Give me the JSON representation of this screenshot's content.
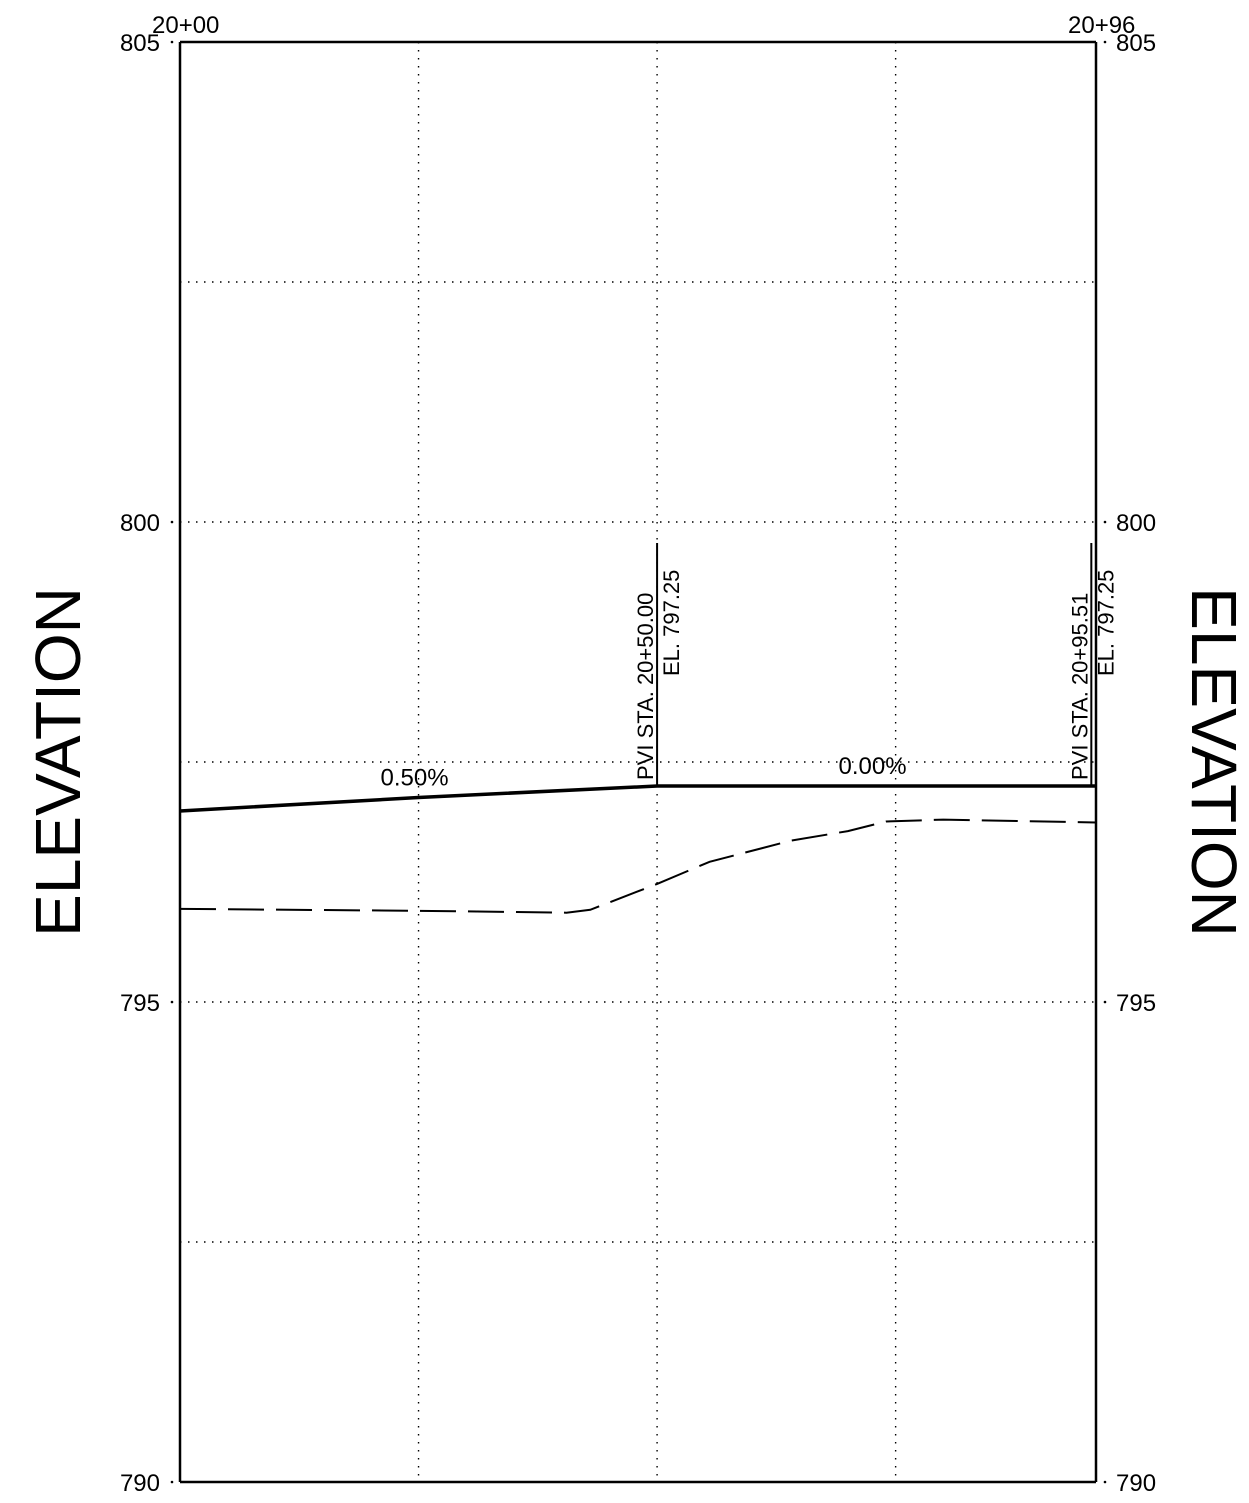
{
  "chart_data": {
    "type": "line",
    "x_axis": {
      "start_label": "20+00",
      "end_label": "20+96",
      "range_ft": [
        0,
        96
      ],
      "grid_every_ft": 25
    },
    "y_axis": {
      "label_left": "ELEVATION",
      "label_right": "ELEVATION",
      "range": [
        790,
        805
      ],
      "major_ticks": [
        790,
        795,
        800,
        805
      ],
      "tick_labels": [
        "790",
        "795",
        "800",
        "805"
      ],
      "minor_grid": [
        792.5,
        797.5,
        802.5
      ]
    },
    "grid": true,
    "series": [
      {
        "style": "solid",
        "points": [
          [
            0,
            796.99
          ],
          [
            25,
            797.13
          ],
          [
            50,
            797.25
          ],
          [
            96,
            797.25
          ]
        ]
      },
      {
        "style": "dashed",
        "points": [
          [
            0,
            795.97
          ],
          [
            25,
            795.95
          ],
          [
            40.5,
            795.93
          ],
          [
            43,
            795.96
          ],
          [
            50,
            796.23
          ],
          [
            55.5,
            796.46
          ],
          [
            64,
            796.68
          ],
          [
            70,
            796.78
          ],
          [
            74,
            796.88
          ],
          [
            80,
            796.9
          ],
          [
            96,
            796.87
          ]
        ]
      }
    ],
    "annotations": {
      "grades": [
        {
          "text": "0.50%",
          "x": 25,
          "y": 797.13
        },
        {
          "text": "0.00%",
          "x": 73,
          "y": 797.25
        }
      ],
      "pvis": [
        {
          "station": "PVI STA. 20+50.00",
          "elevation": "EL. 797.25",
          "x": 50,
          "y": 797.25
        },
        {
          "station": "PVI STA. 20+95.51",
          "elevation": "EL. 797.25",
          "x": 95.51,
          "y": 797.25
        }
      ]
    }
  }
}
